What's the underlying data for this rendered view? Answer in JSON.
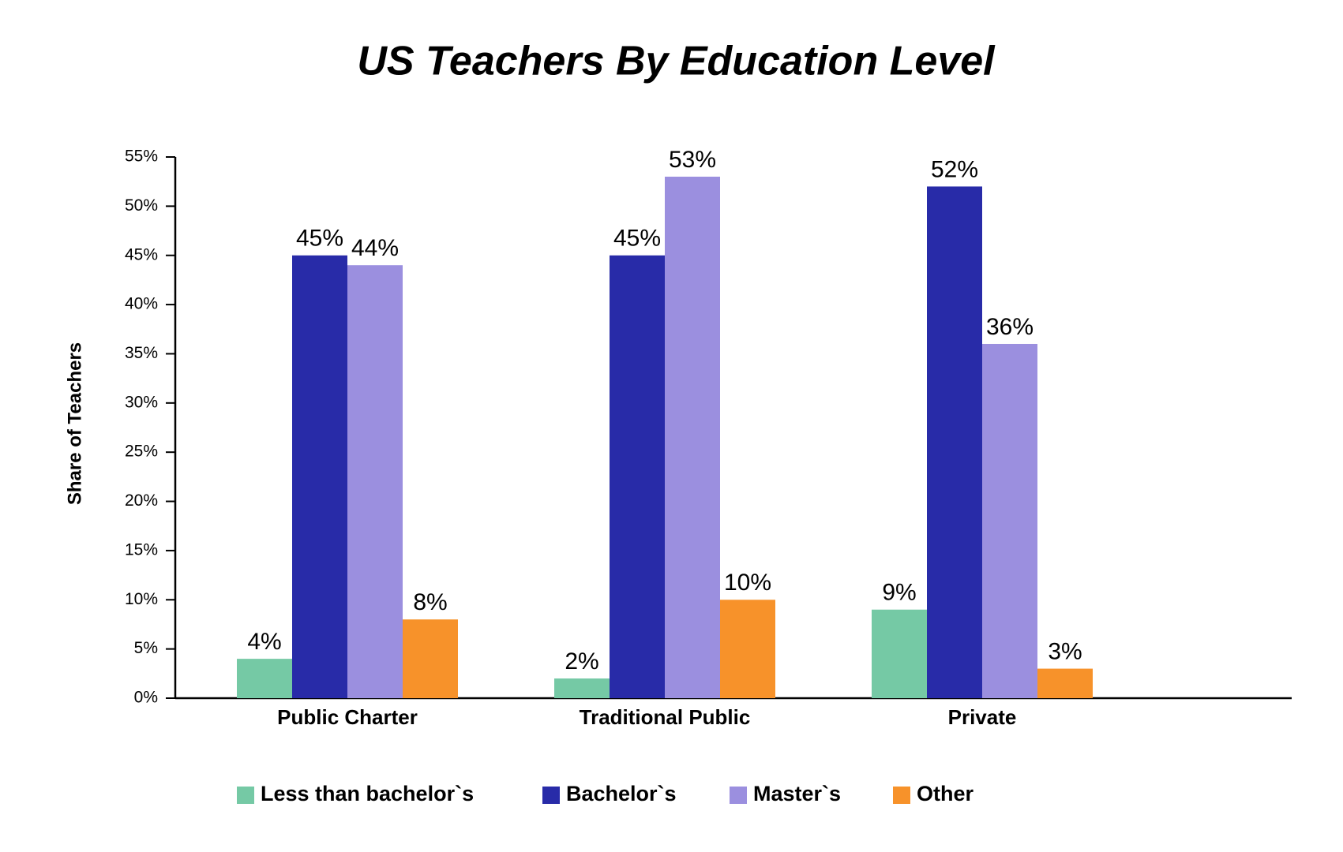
{
  "chart_data": {
    "type": "bar",
    "title": "US Teachers By Education Level",
    "y_label": "Share of Teachers",
    "categories": [
      "Public Charter",
      "Traditional Public",
      "Private"
    ],
    "series": [
      {
        "name": "Less than bachelor`s",
        "color": "#75c9a5",
        "values": [
          4,
          2,
          9
        ],
        "value_labels": [
          "4%",
          "2%",
          "9%"
        ]
      },
      {
        "name": "Bachelor`s",
        "color": "#282ba8",
        "values": [
          45,
          45,
          52
        ],
        "value_labels": [
          "45%",
          "45%",
          "52%"
        ]
      },
      {
        "name": "Master`s",
        "color": "#9b8fdf",
        "values": [
          44,
          53,
          36
        ],
        "value_labels": [
          "44%",
          "53%",
          "36%"
        ]
      },
      {
        "name": "Other",
        "color": "#f7922a",
        "values": [
          8,
          10,
          3
        ],
        "value_labels": [
          "8%",
          "10%",
          "3%"
        ]
      }
    ],
    "ylim": [
      0,
      55
    ],
    "yticks": [
      {
        "value": 0,
        "label": "0%"
      },
      {
        "value": 5,
        "label": "5%"
      },
      {
        "value": 10,
        "label": "10%"
      },
      {
        "value": 15,
        "label": "15%"
      },
      {
        "value": 20,
        "label": "20%"
      },
      {
        "value": 25,
        "label": "25%"
      },
      {
        "value": 30,
        "label": "30%"
      },
      {
        "value": 35,
        "label": "35%"
      },
      {
        "value": 40,
        "label": "40%"
      },
      {
        "value": 45,
        "label": "45%"
      },
      {
        "value": 50,
        "label": "50%"
      },
      {
        "value": 55,
        "label": "55%"
      }
    ],
    "grid": false,
    "legend": "bottom"
  }
}
